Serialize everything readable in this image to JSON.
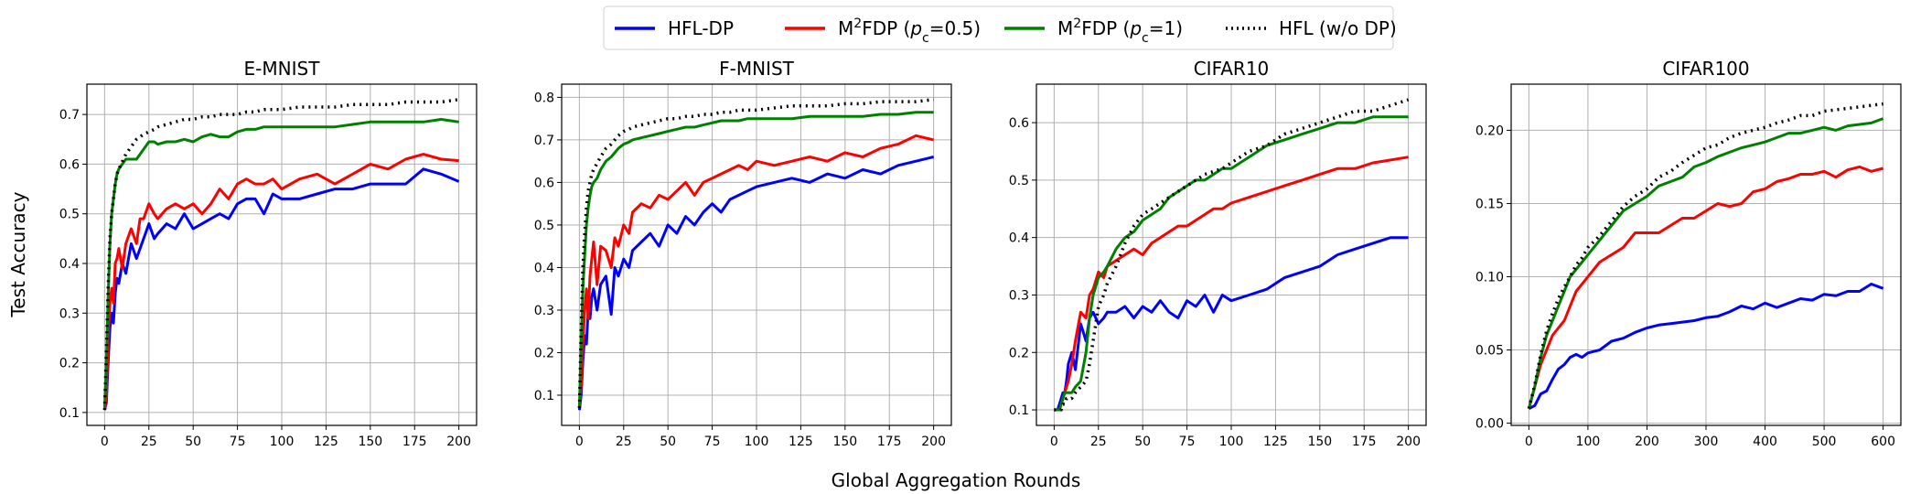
{
  "legend": [
    {
      "pre": "HFL-DP",
      "sup": "",
      "mid": "",
      "it": "",
      "sub": "",
      "post": "",
      "color": "#0000ff",
      "dash": false
    },
    {
      "pre": "M",
      "sup": "2",
      "mid": "FDP (",
      "it": "p",
      "sub": "c",
      "post": "=0.5)",
      "color": "#ff0000",
      "dash": false
    },
    {
      "pre": "M",
      "sup": "2",
      "mid": "FDP (",
      "it": "p",
      "sub": "c",
      "post": "=1)",
      "color": "#008000",
      "dash": false
    },
    {
      "pre": "HFL (w/o DP)",
      "sup": "",
      "mid": "",
      "it": "",
      "sub": "",
      "post": "",
      "color": "#000000",
      "dash": true
    }
  ],
  "ylabel": "Test Accuracy",
  "xlabel": "Global Aggregation Rounds",
  "chart_data": [
    {
      "type": "line",
      "title": "E-MNIST",
      "xlim": [
        -10,
        210
      ],
      "ylim": [
        0.074,
        0.761
      ],
      "xticks": [
        0,
        25,
        50,
        75,
        100,
        125,
        150,
        175,
        200
      ],
      "yticks": [
        "0.1",
        "0.2",
        "0.3",
        "0.4",
        "0.5",
        "0.6",
        "0.7"
      ],
      "x": [
        0,
        1,
        2,
        3,
        4,
        5,
        6,
        7,
        8,
        10,
        12,
        15,
        18,
        20,
        22,
        25,
        28,
        30,
        35,
        40,
        45,
        50,
        55,
        60,
        65,
        70,
        75,
        80,
        85,
        90,
        95,
        100,
        110,
        120,
        130,
        140,
        150,
        160,
        170,
        180,
        190,
        200
      ],
      "series": [
        {
          "name": "HFL-DP",
          "values": [
            0.105,
            0.12,
            0.2,
            0.27,
            0.3,
            0.28,
            0.34,
            0.37,
            0.36,
            0.4,
            0.38,
            0.44,
            0.41,
            0.43,
            0.45,
            0.48,
            0.45,
            0.46,
            0.48,
            0.47,
            0.5,
            0.47,
            0.48,
            0.49,
            0.5,
            0.49,
            0.52,
            0.53,
            0.53,
            0.5,
            0.54,
            0.53,
            0.53,
            0.54,
            0.55,
            0.55,
            0.56,
            0.56,
            0.56,
            0.59,
            0.58,
            0.565
          ]
        },
        {
          "name": "M2FDP (pc=0.5)",
          "values": [
            0.105,
            0.13,
            0.25,
            0.32,
            0.35,
            0.32,
            0.4,
            0.41,
            0.43,
            0.39,
            0.44,
            0.47,
            0.44,
            0.49,
            0.49,
            0.52,
            0.5,
            0.49,
            0.51,
            0.52,
            0.51,
            0.52,
            0.5,
            0.52,
            0.55,
            0.53,
            0.56,
            0.57,
            0.56,
            0.56,
            0.57,
            0.55,
            0.57,
            0.58,
            0.56,
            0.58,
            0.6,
            0.59,
            0.61,
            0.62,
            0.61,
            0.607
          ]
        },
        {
          "name": "M2FDP (pc=1)",
          "values": [
            0.11,
            0.2,
            0.33,
            0.44,
            0.5,
            0.53,
            0.56,
            0.58,
            0.59,
            0.6,
            0.61,
            0.61,
            0.61,
            0.62,
            0.63,
            0.645,
            0.645,
            0.64,
            0.645,
            0.645,
            0.65,
            0.645,
            0.655,
            0.66,
            0.655,
            0.655,
            0.665,
            0.67,
            0.67,
            0.675,
            0.675,
            0.675,
            0.675,
            0.675,
            0.675,
            0.68,
            0.685,
            0.685,
            0.685,
            0.685,
            0.69,
            0.685
          ]
        },
        {
          "name": "HFL (w/o DP)",
          "values": [
            0.105,
            0.22,
            0.35,
            0.45,
            0.5,
            0.53,
            0.56,
            0.58,
            0.59,
            0.605,
            0.62,
            0.635,
            0.65,
            0.655,
            0.66,
            0.665,
            0.67,
            0.675,
            0.68,
            0.685,
            0.69,
            0.69,
            0.695,
            0.695,
            0.7,
            0.7,
            0.7,
            0.705,
            0.705,
            0.71,
            0.71,
            0.71,
            0.715,
            0.715,
            0.715,
            0.72,
            0.72,
            0.72,
            0.725,
            0.725,
            0.725,
            0.73
          ]
        }
      ]
    },
    {
      "type": "line",
      "title": "F-MNIST",
      "xlim": [
        -10,
        210
      ],
      "ylim": [
        0.029,
        0.831
      ],
      "xticks": [
        0,
        25,
        50,
        75,
        100,
        125,
        150,
        175,
        200
      ],
      "yticks": [
        "0.1",
        "0.2",
        "0.3",
        "0.4",
        "0.5",
        "0.6",
        "0.7",
        "0.8"
      ],
      "x": [
        0,
        1,
        2,
        3,
        4,
        5,
        6,
        7,
        8,
        10,
        12,
        15,
        18,
        20,
        22,
        25,
        28,
        30,
        35,
        40,
        45,
        50,
        55,
        60,
        65,
        70,
        75,
        80,
        85,
        90,
        95,
        100,
        110,
        120,
        130,
        140,
        150,
        160,
        170,
        180,
        190,
        200
      ],
      "series": [
        {
          "name": "HFL-DP",
          "values": [
            0.065,
            0.1,
            0.18,
            0.24,
            0.22,
            0.3,
            0.28,
            0.33,
            0.35,
            0.3,
            0.36,
            0.38,
            0.29,
            0.4,
            0.38,
            0.42,
            0.4,
            0.44,
            0.46,
            0.48,
            0.45,
            0.5,
            0.48,
            0.52,
            0.5,
            0.53,
            0.55,
            0.53,
            0.56,
            0.57,
            0.58,
            0.59,
            0.6,
            0.61,
            0.6,
            0.62,
            0.61,
            0.63,
            0.62,
            0.64,
            0.65,
            0.66
          ]
        },
        {
          "name": "M2FDP (pc=0.5)",
          "values": [
            0.07,
            0.12,
            0.22,
            0.3,
            0.35,
            0.28,
            0.38,
            0.42,
            0.46,
            0.36,
            0.45,
            0.44,
            0.4,
            0.47,
            0.45,
            0.5,
            0.48,
            0.53,
            0.55,
            0.54,
            0.57,
            0.56,
            0.58,
            0.6,
            0.57,
            0.6,
            0.61,
            0.62,
            0.63,
            0.64,
            0.63,
            0.65,
            0.64,
            0.65,
            0.66,
            0.65,
            0.67,
            0.66,
            0.68,
            0.69,
            0.71,
            0.7
          ]
        },
        {
          "name": "M2FDP (pc=1)",
          "values": [
            0.07,
            0.22,
            0.35,
            0.43,
            0.5,
            0.54,
            0.57,
            0.59,
            0.6,
            0.61,
            0.63,
            0.65,
            0.66,
            0.67,
            0.68,
            0.69,
            0.695,
            0.7,
            0.705,
            0.71,
            0.715,
            0.72,
            0.725,
            0.73,
            0.73,
            0.735,
            0.74,
            0.745,
            0.745,
            0.745,
            0.75,
            0.75,
            0.75,
            0.75,
            0.755,
            0.755,
            0.755,
            0.755,
            0.76,
            0.76,
            0.765,
            0.765
          ]
        },
        {
          "name": "HFL (w/o DP)",
          "values": [
            0.07,
            0.25,
            0.4,
            0.48,
            0.54,
            0.58,
            0.6,
            0.62,
            0.63,
            0.645,
            0.66,
            0.68,
            0.69,
            0.7,
            0.71,
            0.72,
            0.725,
            0.73,
            0.735,
            0.74,
            0.745,
            0.75,
            0.75,
            0.755,
            0.755,
            0.76,
            0.76,
            0.765,
            0.765,
            0.77,
            0.77,
            0.77,
            0.775,
            0.78,
            0.78,
            0.78,
            0.785,
            0.785,
            0.79,
            0.79,
            0.79,
            0.795
          ]
        }
      ]
    },
    {
      "type": "line",
      "title": "CIFAR10",
      "xlim": [
        -10,
        210
      ],
      "ylim": [
        0.073,
        0.667
      ],
      "xticks": [
        0,
        25,
        50,
        75,
        100,
        125,
        150,
        175,
        200
      ],
      "yticks": [
        "0.1",
        "0.2",
        "0.3",
        "0.4",
        "0.5",
        "0.6"
      ],
      "x": [
        0,
        1,
        2,
        3,
        4,
        5,
        6,
        7,
        8,
        10,
        12,
        15,
        18,
        20,
        22,
        25,
        28,
        30,
        35,
        40,
        45,
        50,
        55,
        60,
        65,
        70,
        75,
        80,
        85,
        90,
        95,
        100,
        110,
        120,
        130,
        140,
        150,
        160,
        170,
        180,
        190,
        200
      ],
      "series": [
        {
          "name": "HFL-DP",
          "values": [
            0.1,
            0.1,
            0.1,
            0.11,
            0.12,
            0.13,
            0.13,
            0.15,
            0.18,
            0.2,
            0.17,
            0.25,
            0.22,
            0.26,
            0.27,
            0.25,
            0.26,
            0.27,
            0.27,
            0.28,
            0.26,
            0.28,
            0.27,
            0.29,
            0.27,
            0.26,
            0.29,
            0.28,
            0.3,
            0.27,
            0.3,
            0.29,
            0.3,
            0.31,
            0.33,
            0.34,
            0.35,
            0.37,
            0.38,
            0.39,
            0.4,
            0.4
          ]
        },
        {
          "name": "M2FDP (pc=0.5)",
          "values": [
            0.1,
            0.1,
            0.1,
            0.1,
            0.11,
            0.12,
            0.13,
            0.14,
            0.15,
            0.18,
            0.22,
            0.27,
            0.26,
            0.3,
            0.31,
            0.34,
            0.33,
            0.35,
            0.36,
            0.37,
            0.38,
            0.37,
            0.39,
            0.4,
            0.41,
            0.42,
            0.42,
            0.43,
            0.44,
            0.45,
            0.45,
            0.46,
            0.47,
            0.48,
            0.49,
            0.5,
            0.51,
            0.52,
            0.52,
            0.53,
            0.535,
            0.54
          ]
        },
        {
          "name": "M2FDP (pc=1)",
          "values": [
            0.1,
            0.1,
            0.1,
            0.1,
            0.11,
            0.12,
            0.13,
            0.13,
            0.13,
            0.13,
            0.14,
            0.15,
            0.2,
            0.26,
            0.3,
            0.33,
            0.34,
            0.35,
            0.38,
            0.4,
            0.41,
            0.43,
            0.44,
            0.45,
            0.47,
            0.48,
            0.49,
            0.5,
            0.5,
            0.51,
            0.52,
            0.52,
            0.54,
            0.56,
            0.57,
            0.58,
            0.59,
            0.6,
            0.6,
            0.61,
            0.61,
            0.61
          ]
        },
        {
          "name": "HFL (w/o DP)",
          "values": [
            0.1,
            0.1,
            0.1,
            0.1,
            0.1,
            0.11,
            0.11,
            0.12,
            0.12,
            0.12,
            0.13,
            0.14,
            0.15,
            0.18,
            0.22,
            0.28,
            0.3,
            0.32,
            0.35,
            0.39,
            0.42,
            0.44,
            0.45,
            0.46,
            0.47,
            0.48,
            0.49,
            0.5,
            0.51,
            0.515,
            0.52,
            0.53,
            0.55,
            0.56,
            0.58,
            0.59,
            0.6,
            0.61,
            0.62,
            0.62,
            0.63,
            0.64
          ]
        }
      ]
    },
    {
      "type": "line",
      "title": "CIFAR100",
      "xlim": [
        -30,
        630
      ],
      "ylim": [
        -0.0015,
        0.2315
      ],
      "xticks": [
        0,
        100,
        200,
        300,
        400,
        500,
        600
      ],
      "yticks": [
        "0.00",
        "0.05",
        "0.10",
        "0.15",
        "0.20"
      ],
      "x": [
        0,
        10,
        20,
        30,
        40,
        50,
        60,
        70,
        80,
        90,
        100,
        120,
        140,
        160,
        180,
        200,
        220,
        240,
        260,
        280,
        300,
        320,
        340,
        360,
        380,
        400,
        420,
        440,
        460,
        480,
        500,
        520,
        540,
        560,
        580,
        600
      ],
      "series": [
        {
          "name": "HFL-DP",
          "values": [
            0.01,
            0.012,
            0.02,
            0.022,
            0.03,
            0.037,
            0.04,
            0.045,
            0.047,
            0.045,
            0.048,
            0.05,
            0.056,
            0.058,
            0.062,
            0.065,
            0.067,
            0.068,
            0.069,
            0.07,
            0.072,
            0.073,
            0.076,
            0.08,
            0.078,
            0.082,
            0.079,
            0.082,
            0.085,
            0.084,
            0.088,
            0.087,
            0.09,
            0.09,
            0.095,
            0.092
          ]
        },
        {
          "name": "M2FDP (pc=0.5)",
          "values": [
            0.01,
            0.025,
            0.04,
            0.05,
            0.06,
            0.065,
            0.07,
            0.08,
            0.09,
            0.095,
            0.1,
            0.11,
            0.115,
            0.12,
            0.13,
            0.13,
            0.13,
            0.135,
            0.14,
            0.14,
            0.145,
            0.15,
            0.148,
            0.15,
            0.158,
            0.16,
            0.165,
            0.167,
            0.17,
            0.17,
            0.172,
            0.168,
            0.173,
            0.175,
            0.172,
            0.174
          ]
        },
        {
          "name": "M2FDP (pc=1)",
          "values": [
            0.01,
            0.025,
            0.045,
            0.06,
            0.07,
            0.08,
            0.09,
            0.1,
            0.105,
            0.11,
            0.115,
            0.125,
            0.135,
            0.145,
            0.15,
            0.155,
            0.162,
            0.165,
            0.168,
            0.175,
            0.178,
            0.182,
            0.185,
            0.188,
            0.19,
            0.192,
            0.195,
            0.198,
            0.198,
            0.2,
            0.202,
            0.2,
            0.203,
            0.204,
            0.205,
            0.208
          ]
        },
        {
          "name": "HFL (w/o DP)",
          "values": [
            0.01,
            0.026,
            0.047,
            0.063,
            0.075,
            0.085,
            0.093,
            0.1,
            0.108,
            0.113,
            0.12,
            0.128,
            0.138,
            0.148,
            0.155,
            0.16,
            0.168,
            0.172,
            0.178,
            0.183,
            0.188,
            0.19,
            0.195,
            0.198,
            0.2,
            0.202,
            0.205,
            0.207,
            0.21,
            0.21,
            0.213,
            0.214,
            0.215,
            0.216,
            0.217,
            0.218
          ]
        }
      ]
    }
  ]
}
